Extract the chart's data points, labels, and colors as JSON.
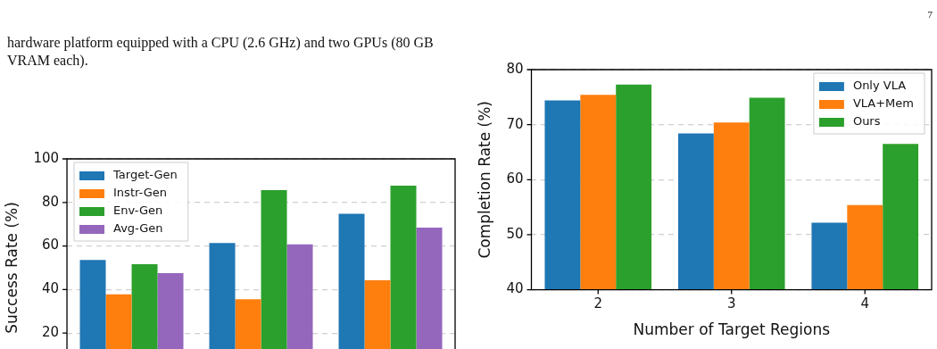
{
  "chart_data": [
    {
      "type": "bar",
      "ylabel": "Success Rate (%)",
      "categories": [
        null,
        null,
        null
      ],
      "series": [
        {
          "name": "Target-Gen",
          "color": "#1f77b4",
          "values": [
            53.6,
            61.4,
            74.8
          ]
        },
        {
          "name": "Instr-Gen",
          "color": "#ff7f0e",
          "values": [
            37.8,
            35.6,
            44.3
          ]
        },
        {
          "name": "Env-Gen",
          "color": "#2ca02c",
          "values": [
            51.6,
            85.7,
            87.7
          ]
        },
        {
          "name": "Avg-Gen",
          "color": "#9467bd",
          "values": [
            47.5,
            60.8,
            68.4
          ]
        }
      ],
      "ylim": [
        0,
        100
      ],
      "yticks": [
        20,
        40,
        60,
        80,
        100
      ],
      "grid": "y",
      "legend": "top left",
      "tick_labels": "y",
      "annotations": [
        "hardware platform equipped with a CPU (2.6 GHz) and two GPUs (80 GB VRAM each)."
      ]
    },
    {
      "type": "bar",
      "xlabel": "Number of Target Regions",
      "ylabel": "Completion Rate (%)",
      "categories": [
        "2",
        "3",
        "4"
      ],
      "series": [
        {
          "name": "Only VLA",
          "color": "#1f77b4",
          "values": [
            74.4,
            68.4,
            52.2
          ]
        },
        {
          "name": "VLA+Mem",
          "color": "#ff7f0e",
          "values": [
            75.4,
            70.4,
            55.4
          ]
        },
        {
          "name": "Ours",
          "color": "#2ca02c",
          "values": [
            77.3,
            74.9,
            66.5
          ]
        }
      ],
      "ylim": [
        40,
        80
      ],
      "yticks": [
        40,
        50,
        60,
        70,
        80
      ],
      "grid": "y",
      "legend": "top right",
      "annotations": [
        "7"
      ]
    }
  ]
}
